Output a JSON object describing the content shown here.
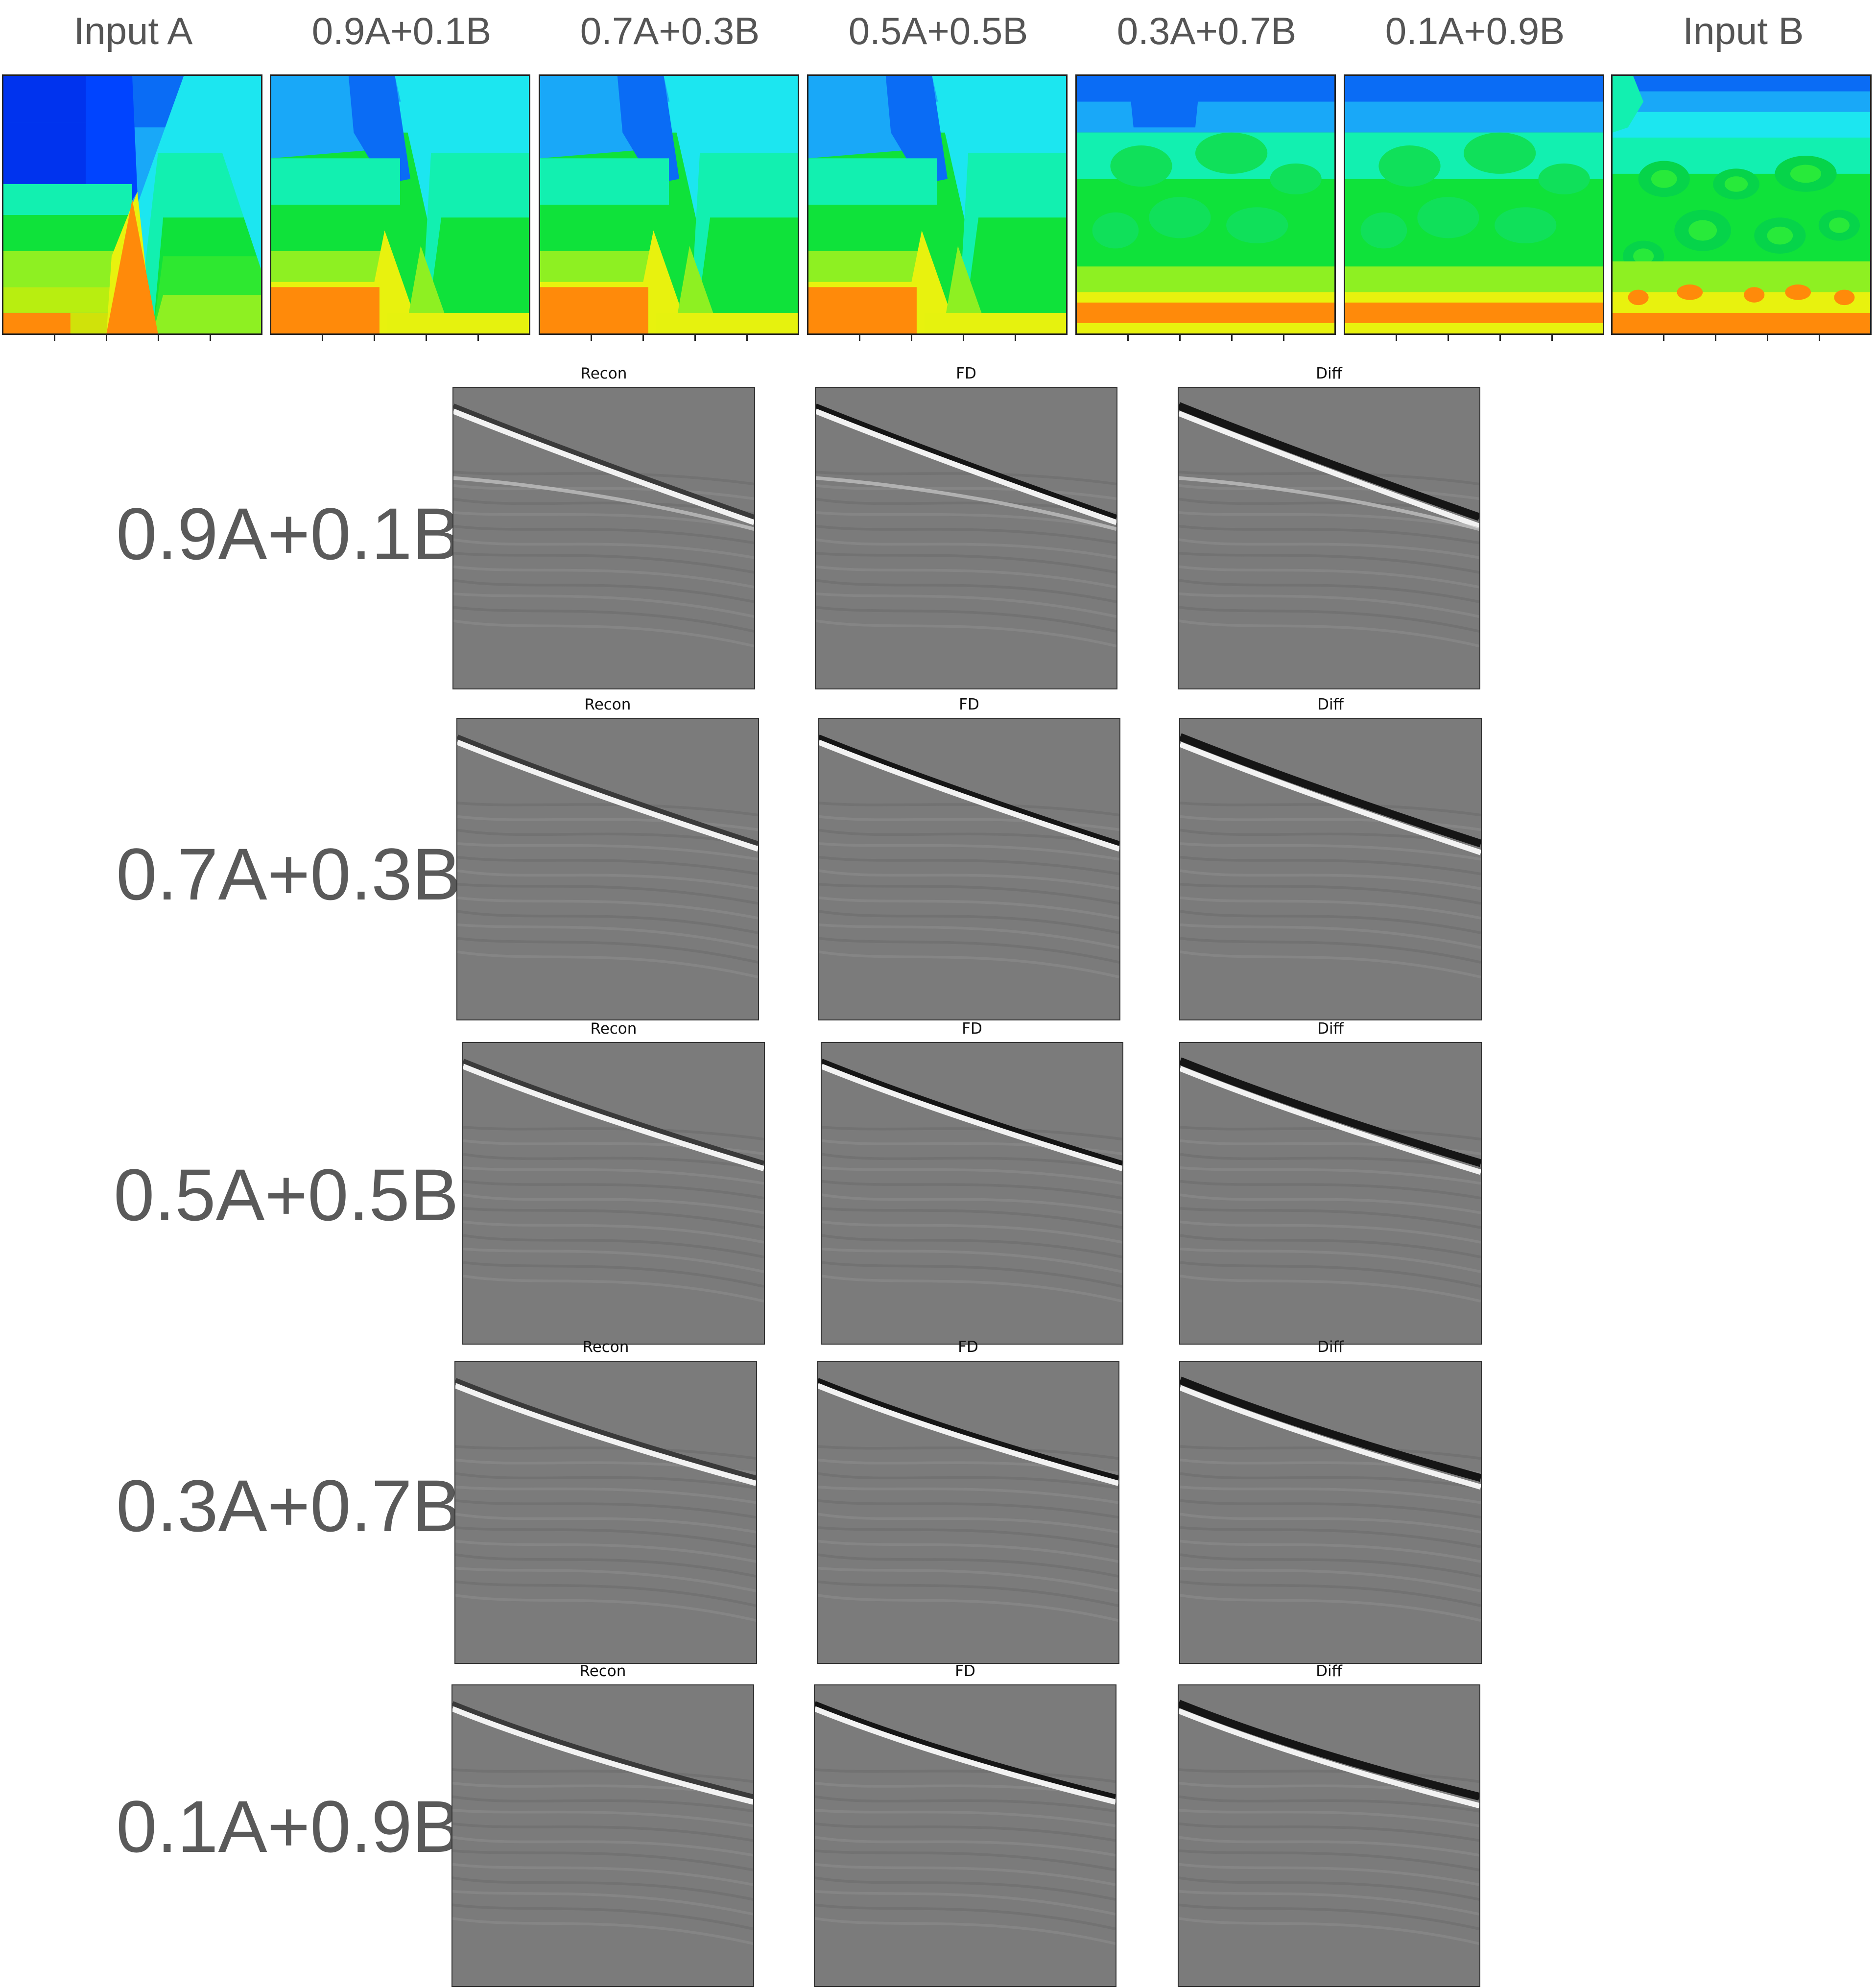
{
  "velocity_row": {
    "titles": [
      "Input A",
      "0.9A+0.1B",
      "0.7A+0.3B",
      "0.5A+0.5B",
      "0.3A+0.7B",
      "0.1A+0.9B",
      "Input B"
    ]
  },
  "grid": {
    "column_titles": [
      "Recon",
      "FD",
      "Diff"
    ],
    "row_labels": [
      "0.9A+0.1B",
      "0.7A+0.3B",
      "0.5A+0.5B",
      "0.3A+0.7B",
      "0.1A+0.9B"
    ]
  },
  "colormap": {
    "name": "jet",
    "low_color": "#0040ff",
    "mid_color": "#00e640",
    "high_color": "#ff6a00"
  },
  "seismic_colors": {
    "background": "#7b7b7b",
    "bright": "#f2f2f2",
    "dark": "#151515"
  }
}
